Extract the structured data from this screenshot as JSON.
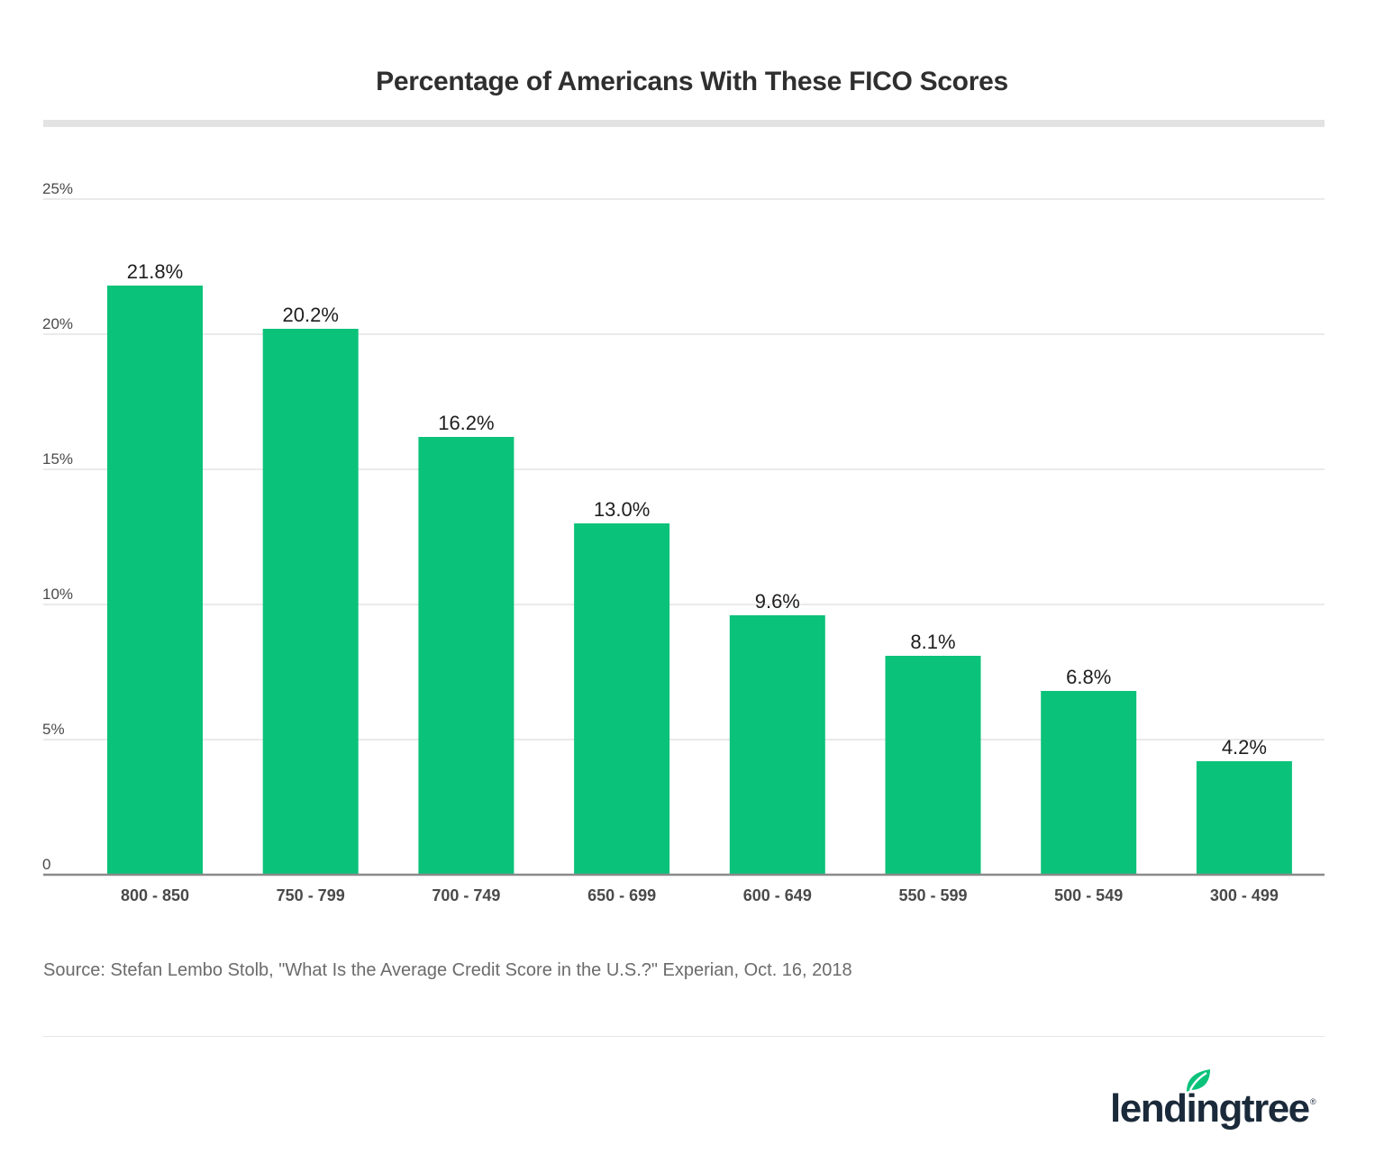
{
  "header": {
    "title": "Percentage of Americans With These FICO Scores"
  },
  "footer": {
    "source": "Source: Stefan Lembo Stolb, \"What Is the Average Credit Score in the U.S.?\" Experian, Oct. 16, 2018"
  },
  "brand": {
    "name": "lendingtree",
    "registered_mark": "®",
    "leaf_icon": "leaf-icon",
    "color": "#1b2a3a",
    "accent": "#0bc27a"
  },
  "chart_data": {
    "type": "bar",
    "title": "Percentage of Americans With These FICO Scores",
    "categories": [
      "800 - 850",
      "750 - 799",
      "700 - 749",
      "650 - 699",
      "600 - 649",
      "550 - 599",
      "500 - 549",
      "300 - 499"
    ],
    "values": [
      21.8,
      20.2,
      16.2,
      13.0,
      9.6,
      8.1,
      6.8,
      4.2
    ],
    "data_labels": [
      "21.8%",
      "20.2%",
      "16.2%",
      "13.0%",
      "9.6%",
      "8.1%",
      "6.8%",
      "4.2%"
    ],
    "y_ticks": [
      0,
      5,
      10,
      15,
      20,
      25
    ],
    "y_tick_labels": [
      "0",
      "5%",
      "10%",
      "15%",
      "20%",
      "25%"
    ],
    "ylim": [
      0,
      25
    ],
    "xlabel": "",
    "ylabel": "",
    "grid": true,
    "bar_color": "#0bc27a"
  }
}
